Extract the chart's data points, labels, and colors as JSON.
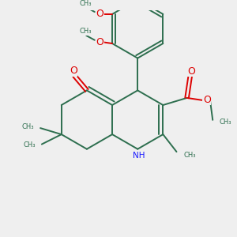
{
  "bg_color": "#efefef",
  "bond_color": "#2d6e4e",
  "N_color": "#1a1aff",
  "O_color": "#dd0000",
  "lw": 1.4,
  "fs": 7.0,
  "fig_size": [
    3.0,
    3.0
  ],
  "dpi": 100,
  "xlim": [
    0,
    10
  ],
  "ylim": [
    0,
    10
  ]
}
